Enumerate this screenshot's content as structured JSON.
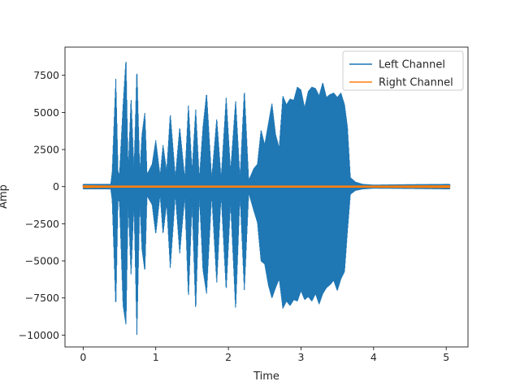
{
  "chart_data": {
    "type": "line",
    "title": "",
    "xlabel": "Time",
    "ylabel": "Amp",
    "xlim": [
      -0.25,
      5.3
    ],
    "ylim": [
      -10800,
      9400
    ],
    "x_ticks": [
      0,
      1,
      2,
      3,
      4,
      5
    ],
    "x_tick_labels": [
      "0",
      "1",
      "2",
      "3",
      "4",
      "5"
    ],
    "y_ticks": [
      -10000,
      -7500,
      -5000,
      -2500,
      0,
      2500,
      5000,
      7500
    ],
    "y_tick_labels": [
      "−10000",
      "−7500",
      "−5000",
      "−2500",
      "0",
      "2500",
      "5000",
      "7500"
    ],
    "grid": false,
    "legend_position": "top-right",
    "series": [
      {
        "name": "Left Channel",
        "color": "#1f77b4",
        "envelope": {
          "x": [
            0.0,
            0.38,
            0.4,
            0.45,
            0.48,
            0.5,
            0.55,
            0.59,
            0.62,
            0.66,
            0.7,
            0.74,
            0.78,
            0.81,
            0.85,
            0.88,
            0.95,
            1.0,
            1.06,
            1.1,
            1.15,
            1.2,
            1.27,
            1.33,
            1.4,
            1.45,
            1.5,
            1.55,
            1.6,
            1.65,
            1.7,
            1.77,
            1.84,
            1.9,
            1.97,
            2.03,
            2.1,
            2.16,
            2.22,
            2.28,
            2.35,
            2.4,
            2.45,
            2.5,
            2.55,
            2.6,
            2.65,
            2.7,
            2.75,
            2.8,
            2.85,
            2.9,
            2.95,
            3.0,
            3.05,
            3.1,
            3.15,
            3.2,
            3.25,
            3.3,
            3.35,
            3.4,
            3.45,
            3.5,
            3.55,
            3.6,
            3.64,
            3.68,
            3.75,
            3.85,
            4.0,
            4.5,
            5.05
          ],
          "max": [
            150,
            150,
            1000,
            7300,
            1000,
            800,
            5500,
            8600,
            1000,
            6000,
            1000,
            8000,
            900,
            3500,
            5000,
            800,
            1500,
            3100,
            700,
            2800,
            1000,
            4900,
            600,
            4000,
            500,
            5500,
            1000,
            5200,
            500,
            4000,
            6300,
            500,
            4600,
            500,
            6000,
            1000,
            5800,
            500,
            6500,
            400,
            1200,
            1500,
            3800,
            2800,
            4200,
            5600,
            3500,
            2600,
            6100,
            5500,
            5900,
            5800,
            6700,
            6500,
            5300,
            6400,
            6700,
            6600,
            6100,
            7000,
            6000,
            6200,
            6300,
            6000,
            6300,
            5500,
            4000,
            600,
            300,
            150,
            100,
            130,
            150
          ],
          "min": [
            -150,
            -150,
            -900,
            -8200,
            -900,
            -1000,
            -8000,
            -9300,
            -1000,
            -6000,
            -1000,
            -10000,
            -900,
            -4200,
            -5700,
            -600,
            -1200,
            -3200,
            -500,
            -3200,
            -1100,
            -5500,
            -500,
            -4500,
            -600,
            -7500,
            -1000,
            -8400,
            -500,
            -5600,
            -7200,
            -500,
            -6500,
            -500,
            -7000,
            -1000,
            -8300,
            -500,
            -7000,
            -400,
            -1600,
            -2400,
            -5000,
            -5200,
            -6600,
            -7500,
            -6800,
            -6200,
            -8200,
            -7700,
            -8000,
            -7600,
            -7700,
            -7000,
            -7600,
            -7400,
            -7700,
            -7200,
            -7900,
            -7200,
            -6800,
            -6600,
            -6300,
            -7000,
            -6200,
            -5700,
            -3000,
            -500,
            -250,
            -150,
            -100,
            -120,
            -150
          ]
        }
      },
      {
        "name": "Right Channel",
        "color": "#ff7f0e",
        "envelope": {
          "x": [
            0.0,
            0.4,
            1.0,
            2.0,
            3.0,
            3.65,
            4.0,
            5.05
          ],
          "max": [
            60,
            40,
            40,
            40,
            40,
            40,
            40,
            60
          ],
          "min": [
            -60,
            -40,
            -40,
            -40,
            -40,
            -40,
            -40,
            -60
          ]
        }
      }
    ]
  }
}
